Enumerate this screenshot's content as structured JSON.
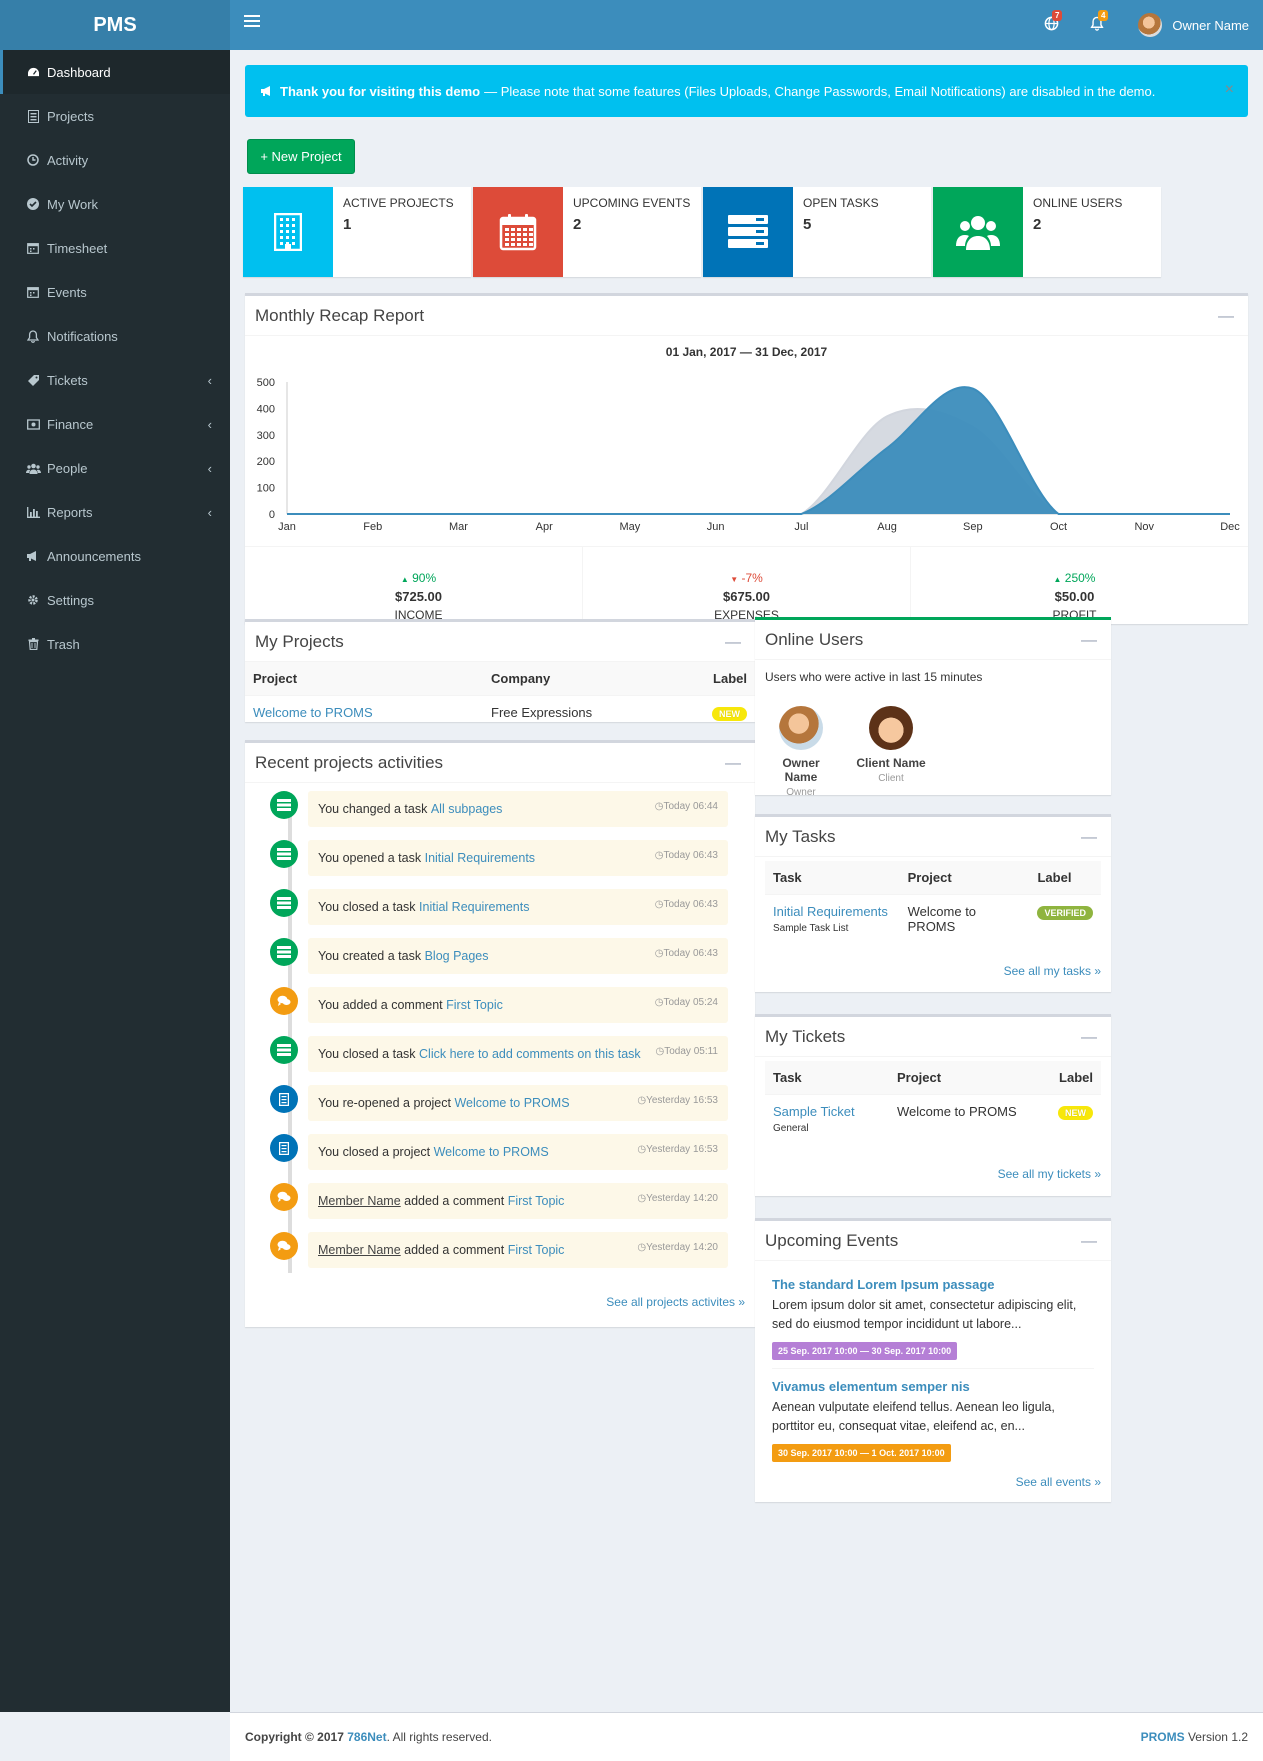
{
  "app": {
    "logo": "PMS"
  },
  "sidebar": {
    "items": [
      {
        "label": "Dashboard",
        "icon": "dashboard-icon"
      },
      {
        "label": "Projects",
        "icon": "projects-icon"
      },
      {
        "label": "Activity",
        "icon": "activity-icon"
      },
      {
        "label": "My Work",
        "icon": "check-icon"
      },
      {
        "label": "Timesheet",
        "icon": "calendar-icon"
      },
      {
        "label": "Events",
        "icon": "calendar-icon"
      },
      {
        "label": "Notifications",
        "icon": "bell-icon"
      },
      {
        "label": "Tickets",
        "icon": "ticket-icon"
      },
      {
        "label": "Finance",
        "icon": "money-icon"
      },
      {
        "label": "People",
        "icon": "people-icon"
      },
      {
        "label": "Reports",
        "icon": "chart-icon"
      },
      {
        "label": "Announcements",
        "icon": "megaphone-icon"
      },
      {
        "label": "Settings",
        "icon": "gear-icon"
      },
      {
        "label": "Trash",
        "icon": "trash-icon"
      }
    ]
  },
  "header": {
    "globe_badge": "7",
    "bell_badge": "4",
    "user_name": "Owner Name"
  },
  "callout": {
    "bold": "Thank you for visiting this demo",
    "text": "— Please note that some features (Files Uploads, Change Passwords, Email Notifications) are disabled in the demo.",
    "close": "×"
  },
  "new_project_label": "+ New Project",
  "info_boxes": [
    {
      "label": "ACTIVE PROJECTS",
      "value": "1",
      "color": "#00c0ef"
    },
    {
      "label": "UPCOMING EVENTS",
      "value": "2",
      "color": "#dd4b39"
    },
    {
      "label": "OPEN TASKS",
      "value": "5",
      "color": "#0073b7"
    },
    {
      "label": "ONLINE USERS",
      "value": "2",
      "color": "#00a65a"
    }
  ],
  "recap": {
    "title": "Monthly Recap Report",
    "stats": [
      {
        "change": "90%",
        "direction": "up",
        "value": "$725.00",
        "label": "INCOME"
      },
      {
        "change": "-7%",
        "direction": "down",
        "value": "$675.00",
        "label": "EXPENSES"
      },
      {
        "change": "250%",
        "direction": "up",
        "value": "$50.00",
        "label": "PROFIT"
      }
    ]
  },
  "chart_data": {
    "type": "area",
    "title": "01 Jan, 2017 — 31 Dec, 2017",
    "categories": [
      "Jan",
      "Feb",
      "Mar",
      "Apr",
      "May",
      "Jun",
      "Jul",
      "Aug",
      "Sep",
      "Oct",
      "Nov",
      "Dec"
    ],
    "yticks": [
      "0",
      "100",
      "200",
      "300",
      "400",
      "500"
    ],
    "ylim": [
      0,
      500
    ],
    "series": [
      {
        "values": [
          0,
          0,
          0,
          0,
          0,
          0,
          0,
          370,
          330,
          0,
          0,
          0
        ],
        "color": "#d2d6de"
      },
      {
        "values": [
          0,
          0,
          0,
          0,
          0,
          0,
          0,
          250,
          475,
          0,
          0,
          0
        ],
        "color": "#3c8dbc"
      }
    ]
  },
  "my_projects": {
    "title": "My Projects",
    "headers": [
      "Project",
      "Company",
      "Label"
    ],
    "rows": [
      {
        "project": "Welcome to PROMS",
        "company": "Free Expressions",
        "label": "NEW"
      }
    ]
  },
  "activities": {
    "title": "Recent projects activities",
    "items": [
      {
        "pre": "You changed a task",
        "link": "All subpages",
        "time": "Today 06:44",
        "kind": "task"
      },
      {
        "pre": "You opened a task",
        "link": "Initial Requirements",
        "time": "Today 06:43",
        "kind": "task"
      },
      {
        "pre": "You closed a task",
        "link": "Initial Requirements",
        "time": "Today 06:43",
        "kind": "task"
      },
      {
        "pre": "You created a task",
        "link": "Blog Pages",
        "time": "Today 06:43",
        "kind": "task"
      },
      {
        "pre": "You added a comment",
        "link": "First Topic",
        "time": "Today 05:24",
        "kind": "comment"
      },
      {
        "pre": "You closed a task",
        "link": "Click here to add comments on this task",
        "time": "Today 05:11",
        "kind": "task"
      },
      {
        "pre": "You re-opened a project",
        "link": "Welcome to PROMS",
        "time": "Yesterday 16:53",
        "kind": "project"
      },
      {
        "pre": "You closed a project",
        "link": "Welcome to PROMS",
        "time": "Yesterday 16:53",
        "kind": "project"
      },
      {
        "member": "Member Name",
        "pre": "added a comment",
        "link": "First Topic",
        "time": "Yesterday 14:20",
        "kind": "comment"
      },
      {
        "member": "Member Name",
        "pre": "added a comment",
        "link": "First Topic",
        "time": "Yesterday 14:20",
        "kind": "comment"
      }
    ],
    "see_all": "See all projects activites »"
  },
  "online_users": {
    "title": "Online Users",
    "subtitle": "Users who were active in last 15 minutes",
    "users": [
      {
        "name": "Owner Name",
        "role": "Owner"
      },
      {
        "name": "Client Name",
        "role": "Client"
      }
    ]
  },
  "my_tasks": {
    "title": "My Tasks",
    "headers": [
      "Task",
      "Project",
      "Label"
    ],
    "rows": [
      {
        "task": "Initial Requirements",
        "sub": "Sample Task List",
        "project": "Welcome to PROMS",
        "label": "VERIFIED"
      }
    ],
    "see_all": "See all my tasks »"
  },
  "my_tickets": {
    "title": "My Tickets",
    "headers": [
      "Task",
      "Project",
      "Label"
    ],
    "rows": [
      {
        "task": "Sample Ticket",
        "sub": "General",
        "project": "Welcome to PROMS",
        "label": "NEW"
      }
    ],
    "see_all": "See all my tickets »"
  },
  "events": {
    "title": "Upcoming Events",
    "items": [
      {
        "title": "The standard Lorem Ipsum passage",
        "desc": "Lorem ipsum dolor sit amet, consectetur adipiscing elit, sed do eiusmod tempor incididunt ut labore...",
        "date": "25 Sep. 2017 10:00 — 30 Sep. 2017 10:00",
        "color": "#b57fd6"
      },
      {
        "title": "Vivamus elementum semper nis",
        "desc": "Aenean vulputate eleifend tellus. Aenean leo ligula, porttitor eu, consequat vitae, eleifend ac, en...",
        "date": "30 Sep. 2017 10:00 — 1 Oct. 2017 10:00",
        "color": "#f39c12"
      }
    ],
    "see_all": "See all events »"
  },
  "footer": {
    "copyright": "Copyright © 2017",
    "company": "786Net",
    "rights": ". All rights reserved.",
    "product": "PROMS",
    "version": "Version 1.2"
  }
}
